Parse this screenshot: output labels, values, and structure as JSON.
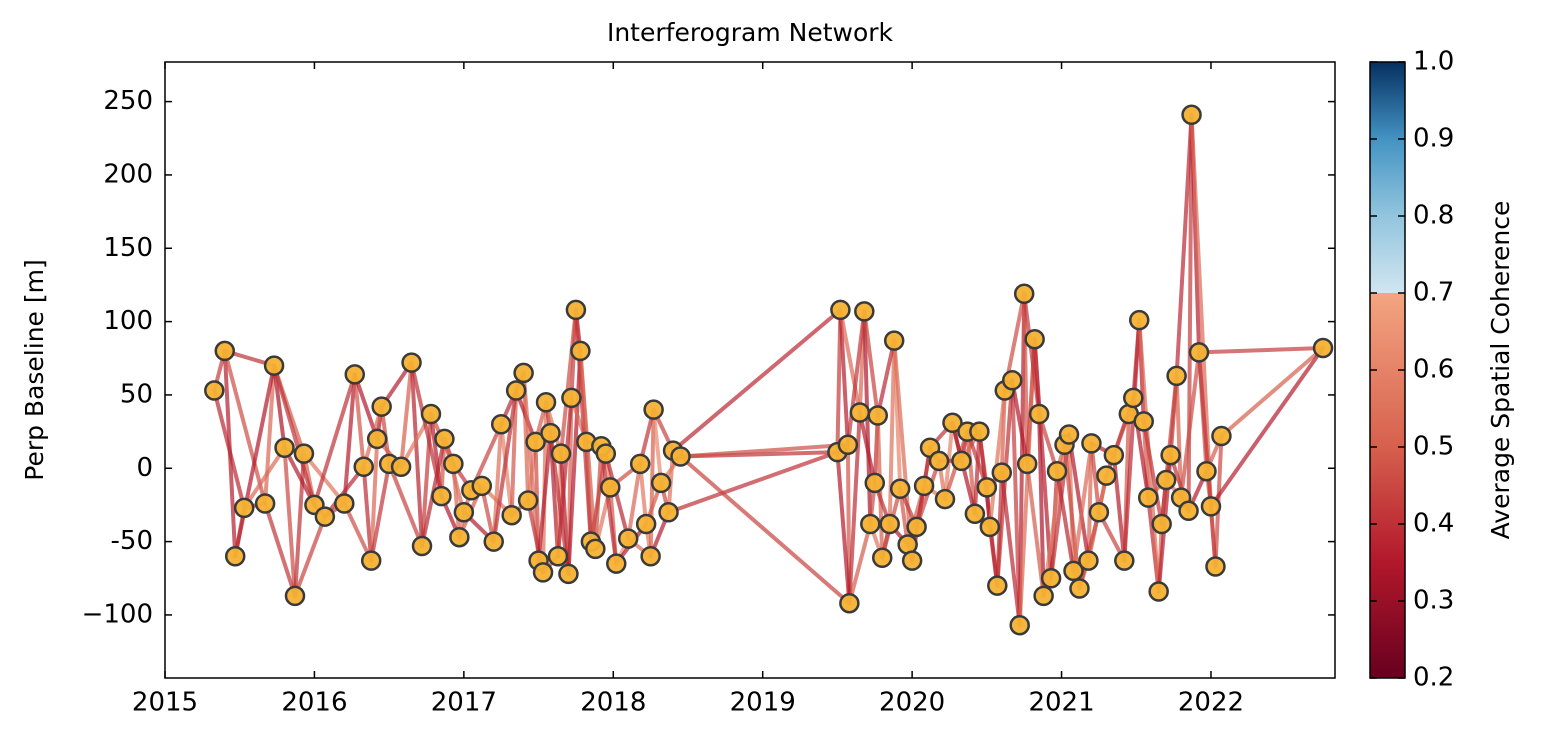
{
  "chart_data": {
    "type": "scatter",
    "title": "Interferogram Network",
    "ylabel": "Perp Baseline [m]",
    "x": [
      2015.33,
      2015.4,
      2015.47,
      2015.53,
      2015.67,
      2015.73,
      2015.8,
      2015.87,
      2015.93,
      2016.0,
      2016.07,
      2016.2,
      2016.27,
      2016.33,
      2016.38,
      2016.42,
      2016.45,
      2016.5,
      2016.58,
      2016.65,
      2016.72,
      2016.78,
      2016.85,
      2016.87,
      2016.93,
      2016.97,
      2017.0,
      2017.05,
      2017.12,
      2017.2,
      2017.25,
      2017.32,
      2017.35,
      2017.4,
      2017.43,
      2017.48,
      2017.5,
      2017.53,
      2017.55,
      2017.58,
      2017.63,
      2017.65,
      2017.7,
      2017.72,
      2017.75,
      2017.78,
      2017.82,
      2017.85,
      2017.88,
      2017.92,
      2017.95,
      2017.98,
      2018.02,
      2018.1,
      2018.18,
      2018.22,
      2018.25,
      2018.27,
      2018.32,
      2018.37,
      2018.4,
      2018.45,
      2019.5,
      2019.52,
      2019.57,
      2019.58,
      2019.65,
      2019.68,
      2019.72,
      2019.75,
      2019.77,
      2019.8,
      2019.85,
      2019.88,
      2019.92,
      2019.97,
      2020.0,
      2020.03,
      2020.08,
      2020.12,
      2020.18,
      2020.22,
      2020.27,
      2020.33,
      2020.37,
      2020.42,
      2020.45,
      2020.5,
      2020.52,
      2020.57,
      2020.6,
      2020.62,
      2020.67,
      2020.72,
      2020.75,
      2020.77,
      2020.82,
      2020.85,
      2020.88,
      2020.93,
      2020.97,
      2021.02,
      2021.05,
      2021.08,
      2021.12,
      2021.18,
      2021.2,
      2021.25,
      2021.3,
      2021.35,
      2021.42,
      2021.45,
      2021.48,
      2021.52,
      2021.55,
      2021.58,
      2021.65,
      2021.67,
      2021.7,
      2021.73,
      2021.77,
      2021.8,
      2021.85,
      2021.87,
      2021.92,
      2021.97,
      2022.0,
      2022.03,
      2022.07,
      2022.75
    ],
    "values": [
      53,
      80,
      -60,
      -27,
      -24,
      70,
      14,
      -87,
      10,
      -25,
      -33,
      -24,
      64,
      1,
      -63,
      20,
      42,
      3,
      1,
      72,
      -53,
      37,
      -19,
      20,
      3,
      -47,
      -30,
      -15,
      -12,
      -50,
      30,
      -32,
      53,
      65,
      -22,
      18,
      -63,
      -71,
      45,
      24,
      -60,
      10,
      -72,
      48,
      108,
      80,
      18,
      -50,
      -55,
      15,
      10,
      -13,
      -65,
      -48,
      3,
      -38,
      -60,
      40,
      -10,
      -30,
      12,
      8,
      11,
      108,
      16,
      -92,
      38,
      107,
      -38,
      -10,
      36,
      -61,
      -38,
      87,
      -14,
      -52,
      -63,
      -40,
      -12,
      14,
      5,
      -21,
      31,
      5,
      25,
      -31,
      25,
      -13,
      -40,
      -80,
      -3,
      53,
      60,
      -107,
      119,
      3,
      88,
      37,
      -87,
      -75,
      -2,
      16,
      23,
      -70,
      -82,
      -63,
      17,
      -30,
      -5,
      9,
      -63,
      37,
      48,
      101,
      32,
      -20,
      -84,
      -38,
      -8,
      9,
      63,
      -20,
      -29,
      241,
      79,
      -2,
      -26,
      -67,
      22,
      82
    ],
    "point_color": "#f5b233",
    "point_edge": "#3a3a3a",
    "edges": [
      [
        0,
        1,
        0.42
      ],
      [
        1,
        2,
        0.36
      ],
      [
        2,
        3,
        0.48
      ],
      [
        3,
        4,
        0.39
      ],
      [
        4,
        5,
        0.52
      ],
      [
        5,
        6,
        0.34
      ],
      [
        6,
        7,
        0.45
      ],
      [
        7,
        8,
        0.4
      ],
      [
        8,
        9,
        0.5
      ],
      [
        9,
        10,
        0.37
      ],
      [
        10,
        11,
        0.42
      ],
      [
        11,
        12,
        0.36
      ],
      [
        12,
        13,
        0.48
      ],
      [
        13,
        14,
        0.39
      ],
      [
        14,
        15,
        0.52
      ],
      [
        15,
        16,
        0.34
      ],
      [
        16,
        17,
        0.45
      ],
      [
        17,
        18,
        0.4
      ],
      [
        18,
        19,
        0.5
      ],
      [
        19,
        20,
        0.37
      ],
      [
        20,
        21,
        0.42
      ],
      [
        21,
        22,
        0.36
      ],
      [
        22,
        23,
        0.48
      ],
      [
        23,
        24,
        0.39
      ],
      [
        24,
        25,
        0.52
      ],
      [
        25,
        26,
        0.58
      ],
      [
        26,
        27,
        0.5
      ],
      [
        27,
        28,
        0.62
      ],
      [
        28,
        29,
        0.45
      ],
      [
        29,
        30,
        0.55
      ],
      [
        30,
        31,
        0.6
      ],
      [
        31,
        32,
        0.48
      ],
      [
        32,
        33,
        0.64
      ],
      [
        33,
        34,
        0.52
      ],
      [
        34,
        35,
        0.57
      ],
      [
        35,
        36,
        0.45
      ],
      [
        36,
        37,
        0.38
      ],
      [
        37,
        38,
        0.55
      ],
      [
        38,
        39,
        0.4
      ],
      [
        39,
        40,
        0.36
      ],
      [
        40,
        41,
        0.58
      ],
      [
        41,
        42,
        0.35
      ],
      [
        42,
        43,
        0.5
      ],
      [
        43,
        44,
        0.42
      ],
      [
        44,
        45,
        0.37
      ],
      [
        45,
        46,
        0.58
      ],
      [
        46,
        47,
        0.5
      ],
      [
        47,
        48,
        0.62
      ],
      [
        48,
        49,
        0.45
      ],
      [
        49,
        50,
        0.55
      ],
      [
        50,
        51,
        0.6
      ],
      [
        51,
        52,
        0.48
      ],
      [
        52,
        53,
        0.64
      ],
      [
        53,
        54,
        0.52
      ],
      [
        54,
        55,
        0.57
      ],
      [
        55,
        56,
        0.58
      ],
      [
        56,
        57,
        0.5
      ],
      [
        57,
        58,
        0.62
      ],
      [
        58,
        59,
        0.45
      ],
      [
        59,
        60,
        0.55
      ],
      [
        60,
        61,
        0.6
      ],
      [
        61,
        62,
        0.4
      ],
      [
        62,
        63,
        0.42
      ],
      [
        63,
        64,
        0.36
      ],
      [
        64,
        65,
        0.48
      ],
      [
        65,
        66,
        0.39
      ],
      [
        66,
        67,
        0.52
      ],
      [
        67,
        68,
        0.34
      ],
      [
        68,
        69,
        0.45
      ],
      [
        69,
        70,
        0.4
      ],
      [
        70,
        71,
        0.5
      ],
      [
        71,
        72,
        0.37
      ],
      [
        72,
        73,
        0.55
      ],
      [
        73,
        74,
        0.6
      ],
      [
        74,
        75,
        0.48
      ],
      [
        75,
        76,
        0.58
      ],
      [
        76,
        77,
        0.52
      ],
      [
        77,
        78,
        0.57
      ],
      [
        78,
        79,
        0.62
      ],
      [
        79,
        80,
        0.5
      ],
      [
        80,
        81,
        0.55
      ],
      [
        81,
        82,
        0.6
      ],
      [
        82,
        83,
        0.42
      ],
      [
        83,
        84,
        0.36
      ],
      [
        84,
        85,
        0.48
      ],
      [
        85,
        86,
        0.39
      ],
      [
        86,
        87,
        0.52
      ],
      [
        87,
        88,
        0.34
      ],
      [
        88,
        89,
        0.45
      ],
      [
        89,
        90,
        0.4
      ],
      [
        90,
        91,
        0.5
      ],
      [
        91,
        92,
        0.37
      ],
      [
        92,
        93,
        0.42
      ],
      [
        93,
        94,
        0.36
      ],
      [
        94,
        95,
        0.48
      ],
      [
        95,
        96,
        0.39
      ],
      [
        96,
        97,
        0.52
      ],
      [
        97,
        98,
        0.34
      ],
      [
        98,
        99,
        0.45
      ],
      [
        99,
        100,
        0.4
      ],
      [
        100,
        101,
        0.5
      ],
      [
        101,
        102,
        0.37
      ],
      [
        102,
        103,
        0.55
      ],
      [
        103,
        104,
        0.48
      ],
      [
        104,
        105,
        0.58
      ],
      [
        105,
        106,
        0.52
      ],
      [
        106,
        107,
        0.45
      ],
      [
        107,
        108,
        0.6
      ],
      [
        108,
        109,
        0.42
      ],
      [
        109,
        110,
        0.36
      ],
      [
        110,
        111,
        0.48
      ],
      [
        111,
        112,
        0.39
      ],
      [
        112,
        113,
        0.42
      ],
      [
        113,
        114,
        0.36
      ],
      [
        114,
        115,
        0.48
      ],
      [
        115,
        116,
        0.39
      ],
      [
        116,
        117,
        0.52
      ],
      [
        117,
        118,
        0.34
      ],
      [
        118,
        119,
        0.45
      ],
      [
        119,
        120,
        0.4
      ],
      [
        120,
        121,
        0.5
      ],
      [
        121,
        122,
        0.37
      ],
      [
        122,
        123,
        0.42
      ],
      [
        123,
        124,
        0.36
      ],
      [
        124,
        125,
        0.48
      ],
      [
        125,
        126,
        0.55
      ],
      [
        126,
        127,
        0.62
      ],
      [
        127,
        128,
        0.45
      ],
      [
        128,
        129,
        0.5
      ],
      [
        0,
        3,
        0.38
      ],
      [
        1,
        4,
        0.46
      ],
      [
        2,
        5,
        0.35
      ],
      [
        3,
        6,
        0.53
      ],
      [
        4,
        7,
        0.41
      ],
      [
        5,
        8,
        0.49
      ],
      [
        6,
        9,
        0.36
      ],
      [
        7,
        10,
        0.44
      ],
      [
        8,
        11,
        0.56
      ],
      [
        9,
        12,
        0.4
      ],
      [
        10,
        13,
        0.38
      ],
      [
        11,
        14,
        0.46
      ],
      [
        12,
        15,
        0.35
      ],
      [
        13,
        16,
        0.53
      ],
      [
        14,
        17,
        0.41
      ],
      [
        15,
        18,
        0.49
      ],
      [
        16,
        19,
        0.36
      ],
      [
        17,
        20,
        0.44
      ],
      [
        18,
        21,
        0.56
      ],
      [
        19,
        22,
        0.4
      ],
      [
        20,
        23,
        0.38
      ],
      [
        21,
        24,
        0.46
      ],
      [
        22,
        25,
        0.35
      ],
      [
        23,
        26,
        0.53
      ],
      [
        24,
        27,
        0.41
      ],
      [
        25,
        28,
        0.49
      ],
      [
        26,
        29,
        0.36
      ],
      [
        27,
        30,
        0.44
      ],
      [
        28,
        31,
        0.56
      ],
      [
        29,
        32,
        0.4
      ],
      [
        30,
        33,
        0.38
      ],
      [
        31,
        34,
        0.46
      ],
      [
        32,
        35,
        0.35
      ],
      [
        33,
        36,
        0.53
      ],
      [
        34,
        37,
        0.41
      ],
      [
        35,
        38,
        0.49
      ],
      [
        36,
        39,
        0.36
      ],
      [
        37,
        40,
        0.44
      ],
      [
        38,
        41,
        0.56
      ],
      [
        39,
        42,
        0.4
      ],
      [
        40,
        43,
        0.38
      ],
      [
        41,
        44,
        0.46
      ],
      [
        42,
        45,
        0.35
      ],
      [
        43,
        46,
        0.53
      ],
      [
        44,
        47,
        0.41
      ],
      [
        45,
        48,
        0.49
      ],
      [
        46,
        49,
        0.36
      ],
      [
        47,
        50,
        0.44
      ],
      [
        48,
        51,
        0.56
      ],
      [
        49,
        52,
        0.4
      ],
      [
        50,
        53,
        0.38
      ],
      [
        51,
        54,
        0.46
      ],
      [
        52,
        55,
        0.35
      ],
      [
        53,
        56,
        0.53
      ],
      [
        54,
        57,
        0.41
      ],
      [
        55,
        58,
        0.49
      ],
      [
        56,
        59,
        0.36
      ],
      [
        57,
        60,
        0.44
      ],
      [
        58,
        61,
        0.56
      ],
      [
        59,
        62,
        0.4
      ],
      [
        60,
        63,
        0.38
      ],
      [
        61,
        64,
        0.46
      ],
      [
        62,
        65,
        0.35
      ],
      [
        63,
        66,
        0.53
      ],
      [
        64,
        67,
        0.41
      ],
      [
        65,
        68,
        0.49
      ],
      [
        66,
        69,
        0.36
      ],
      [
        67,
        70,
        0.44
      ],
      [
        68,
        71,
        0.56
      ],
      [
        69,
        72,
        0.4
      ],
      [
        70,
        73,
        0.38
      ],
      [
        71,
        74,
        0.46
      ],
      [
        72,
        75,
        0.35
      ],
      [
        73,
        76,
        0.53
      ],
      [
        74,
        77,
        0.41
      ],
      [
        75,
        78,
        0.49
      ],
      [
        76,
        79,
        0.36
      ],
      [
        77,
        80,
        0.44
      ],
      [
        78,
        81,
        0.56
      ],
      [
        79,
        82,
        0.4
      ],
      [
        80,
        83,
        0.38
      ],
      [
        81,
        84,
        0.46
      ],
      [
        82,
        85,
        0.35
      ],
      [
        83,
        86,
        0.53
      ],
      [
        84,
        87,
        0.41
      ],
      [
        85,
        88,
        0.49
      ],
      [
        86,
        89,
        0.36
      ],
      [
        87,
        90,
        0.44
      ],
      [
        88,
        91,
        0.56
      ],
      [
        89,
        92,
        0.4
      ],
      [
        90,
        93,
        0.38
      ],
      [
        91,
        94,
        0.46
      ],
      [
        92,
        95,
        0.35
      ],
      [
        93,
        96,
        0.53
      ],
      [
        94,
        97,
        0.41
      ],
      [
        95,
        98,
        0.49
      ],
      [
        96,
        99,
        0.36
      ],
      [
        97,
        100,
        0.44
      ],
      [
        98,
        101,
        0.56
      ],
      [
        99,
        102,
        0.4
      ],
      [
        100,
        103,
        0.38
      ],
      [
        101,
        104,
        0.46
      ],
      [
        102,
        105,
        0.35
      ],
      [
        103,
        106,
        0.53
      ],
      [
        104,
        107,
        0.41
      ],
      [
        105,
        108,
        0.49
      ],
      [
        106,
        109,
        0.36
      ],
      [
        107,
        110,
        0.44
      ],
      [
        108,
        111,
        0.56
      ],
      [
        109,
        112,
        0.4
      ],
      [
        110,
        113,
        0.38
      ],
      [
        111,
        114,
        0.46
      ],
      [
        112,
        115,
        0.35
      ],
      [
        113,
        116,
        0.53
      ],
      [
        114,
        117,
        0.41
      ],
      [
        115,
        118,
        0.49
      ],
      [
        116,
        119,
        0.36
      ],
      [
        117,
        120,
        0.44
      ],
      [
        118,
        121,
        0.56
      ],
      [
        119,
        122,
        0.4
      ],
      [
        120,
        123,
        0.38
      ],
      [
        121,
        124,
        0.46
      ],
      [
        122,
        125,
        0.35
      ],
      [
        123,
        126,
        0.53
      ],
      [
        124,
        127,
        0.41
      ],
      [
        125,
        128,
        0.49
      ],
      [
        126,
        129,
        0.36
      ],
      [
        1,
        5,
        0.4
      ],
      [
        5,
        9,
        0.4
      ],
      [
        61,
        65,
        0.44
      ],
      [
        124,
        129,
        0.42
      ]
    ],
    "xlim": [
      2015,
      2022.83
    ],
    "xticks": [
      2015,
      2016,
      2017,
      2018,
      2019,
      2020,
      2021,
      2022
    ],
    "ylim": [
      -143,
      277
    ],
    "yticks": [
      {
        "value": -100,
        "label": "−100"
      },
      -50,
      0,
      50,
      100,
      150,
      200,
      250
    ],
    "colorbar": {
      "label": "Average Spatial Coherence",
      "lim": [
        0.2,
        1
      ],
      "ticks": [
        0.2,
        0.3,
        0.4,
        0.5,
        0.6,
        0.7,
        0.8,
        0.9,
        {
          "value": 1,
          "label": "1.0"
        }
      ],
      "stops": [
        {
          "value": 0.2,
          "color": "#67001f"
        },
        {
          "value": 0.35,
          "color": "#b2182b"
        },
        {
          "value": 0.5,
          "color": "#d6604d"
        },
        {
          "value": 0.7,
          "color": "#f4a582"
        },
        {
          "value": 0.7,
          "color": "#d1e5f0"
        },
        {
          "value": 0.8,
          "color": "#92c5de"
        },
        {
          "value": 0.9,
          "color": "#4393c3"
        },
        {
          "value": 1,
          "color": "#053061"
        }
      ]
    }
  }
}
